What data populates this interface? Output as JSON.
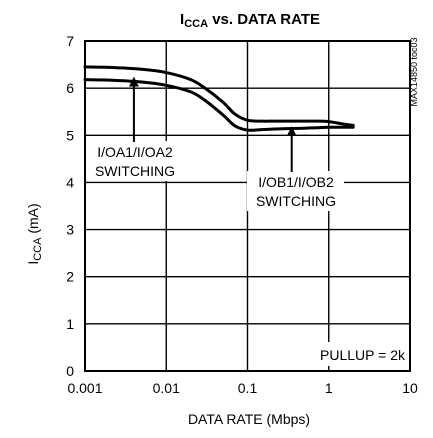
{
  "chart_data": {
    "type": "line",
    "title": {
      "main": "I",
      "sub": "CCA",
      "rest": " vs. DATA RATE"
    },
    "xlabel": "DATA RATE (Mbps)",
    "ylabel": {
      "main": "I",
      "sub": "CCA",
      "rest": " (mA)"
    },
    "xscale": "log",
    "xlim": [
      0.001,
      10
    ],
    "ylim": [
      0,
      7
    ],
    "x_ticks": [
      "0.001",
      "0.01",
      "0.1",
      "1",
      "10"
    ],
    "y_ticks": [
      "0",
      "1",
      "2",
      "3",
      "4",
      "5",
      "6",
      "7"
    ],
    "grid": true,
    "watermark": "MAX14850 toc03",
    "annotations": [
      {
        "lines": [
          "I/OA1/I/OA2",
          "SWITCHING"
        ],
        "target_x": 0.004,
        "target_y": 6.18
      },
      {
        "lines": [
          "I/OB1/I/OB2",
          "SWITCHING"
        ],
        "target_x": 0.35,
        "target_y": 5.13
      },
      {
        "lines": [
          "PULLUP = 2k"
        ]
      }
    ],
    "series": [
      {
        "x": [
          0.001,
          0.002,
          0.005,
          0.01,
          0.02,
          0.03,
          0.05,
          0.07,
          0.1,
          0.15,
          0.2,
          0.3,
          0.5,
          0.7,
          1,
          1.5,
          2
        ],
        "values": [
          6.45,
          6.44,
          6.4,
          6.33,
          6.18,
          6.0,
          5.7,
          5.45,
          5.32,
          5.3,
          5.3,
          5.3,
          5.3,
          5.3,
          5.29,
          5.24,
          5.21
        ]
      },
      {
        "x": [
          0.001,
          0.002,
          0.005,
          0.01,
          0.02,
          0.03,
          0.05,
          0.07,
          0.1,
          0.15,
          0.2,
          0.3,
          0.5,
          0.7,
          1,
          1.5,
          2
        ],
        "values": [
          6.18,
          6.17,
          6.13,
          6.06,
          5.92,
          5.74,
          5.43,
          5.2,
          5.11,
          5.12,
          5.13,
          5.14,
          5.15,
          5.16,
          5.17,
          5.17,
          5.17
        ]
      }
    ]
  }
}
